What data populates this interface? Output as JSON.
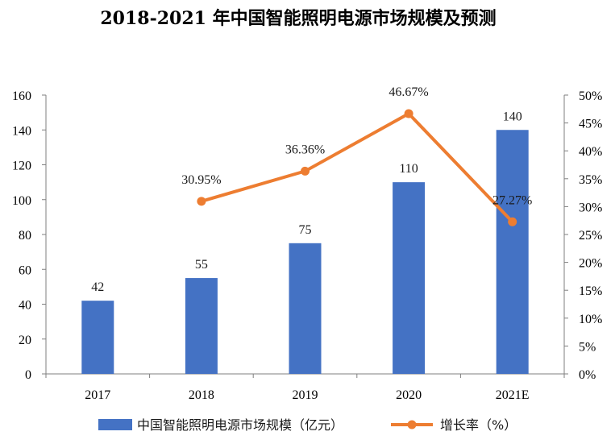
{
  "chart_data": {
    "type": "bar",
    "title": "2018-2021 年中国智能照明电源市场规模及预测",
    "categories": [
      "2017",
      "2018",
      "2019",
      "2020",
      "2021E"
    ],
    "y_left": {
      "ylim": [
        0,
        160
      ],
      "ticks": [
        "0",
        "20",
        "40",
        "60",
        "80",
        "100",
        "120",
        "140",
        "160"
      ]
    },
    "y_right": {
      "ylim": [
        0,
        50
      ],
      "ticks": [
        "0%",
        "5%",
        "10%",
        "15%",
        "20%",
        "25%",
        "30%",
        "35%",
        "40%",
        "45%",
        "50%"
      ]
    },
    "series": [
      {
        "name": "中国智能照明电源市场规模（亿元）",
        "type": "bar",
        "axis": "left",
        "color": "#4472C4",
        "values": [
          42,
          55,
          75,
          110,
          140
        ],
        "labels": [
          "42",
          "55",
          "75",
          "110",
          "140"
        ]
      },
      {
        "name": "增长率（%）",
        "type": "line",
        "axis": "right",
        "color": "#ED7D31",
        "values": [
          null,
          30.95,
          36.36,
          46.67,
          27.27
        ],
        "labels": [
          "",
          "30.95%",
          "36.36%",
          "46.67%",
          "27.27%"
        ]
      }
    ],
    "legend_position": "bottom"
  }
}
